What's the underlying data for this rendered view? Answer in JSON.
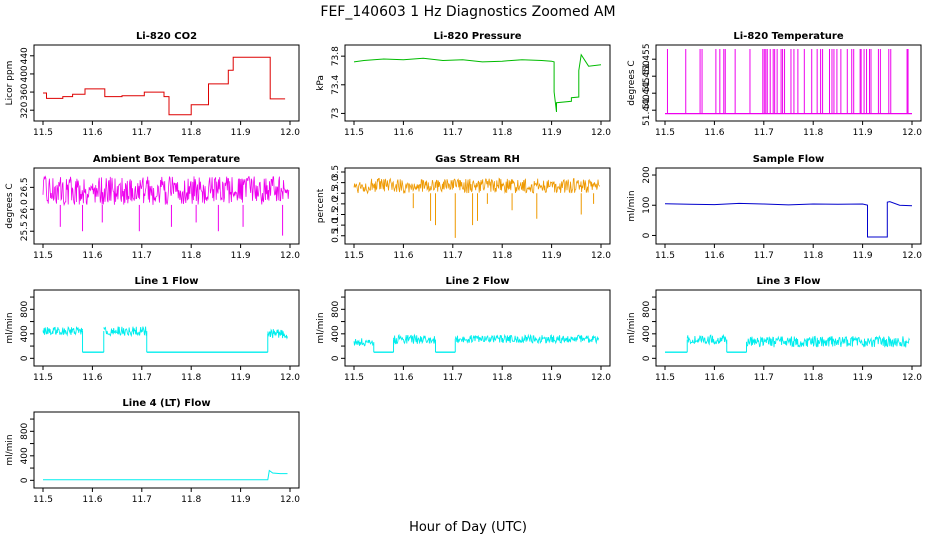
{
  "figure": {
    "title": "FEF_140603  1 Hz Diagnostics Zoomed AM",
    "xlabel": "Hour of Day (UTC)"
  },
  "chart_data": [
    {
      "type": "line",
      "title": "Li-820 CO2",
      "ylabel": "Licor ppm",
      "color": "#dd0000",
      "xlim": [
        11.5,
        12.0
      ],
      "xticks": [
        "11.5",
        "11.6",
        "11.7",
        "11.8",
        "11.9",
        "12.0"
      ],
      "ylim": [
        305,
        455
      ],
      "yticks": [
        320,
        360,
        400,
        440
      ],
      "x": [
        11.5,
        11.507,
        11.507,
        11.54,
        11.54,
        11.56,
        11.56,
        11.585,
        11.585,
        11.625,
        11.625,
        11.66,
        11.66,
        11.705,
        11.705,
        11.745,
        11.745,
        11.755,
        11.755,
        11.8,
        11.8,
        11.835,
        11.835,
        11.875,
        11.875,
        11.885,
        11.885,
        11.96,
        11.96,
        11.99
      ],
      "values": [
        358,
        358,
        346,
        346,
        350,
        350,
        355,
        355,
        367,
        367,
        350,
        350,
        352,
        352,
        360,
        360,
        350,
        350,
        310,
        310,
        332,
        332,
        378,
        378,
        408,
        408,
        437,
        437,
        345,
        345
      ]
    },
    {
      "type": "line",
      "title": "Li-820 Pressure",
      "ylabel": "kPa",
      "color": "#00bb00",
      "xlim": [
        11.5,
        12.0
      ],
      "xticks": [
        "11.5",
        "11.6",
        "11.7",
        "11.8",
        "11.9",
        "12.0"
      ],
      "ylim": [
        72.95,
        73.9
      ],
      "yticks": [
        73.0,
        73.4,
        73.8
      ],
      "x": [
        11.5,
        11.52,
        11.56,
        11.6,
        11.64,
        11.68,
        11.72,
        11.76,
        11.8,
        11.84,
        11.88,
        11.9,
        11.905,
        11.905,
        11.91,
        11.91,
        11.94,
        11.94,
        11.955,
        11.955,
        11.96,
        11.975,
        12.0
      ],
      "values": [
        73.72,
        73.74,
        73.76,
        73.75,
        73.77,
        73.74,
        73.75,
        73.72,
        73.73,
        73.75,
        73.74,
        73.73,
        73.72,
        73.3,
        73.02,
        73.15,
        73.17,
        73.22,
        73.23,
        73.6,
        73.82,
        73.66,
        73.68
      ]
    },
    {
      "type": "line",
      "title": "Li-820 Temperature",
      "ylabel": "degrees C",
      "color": "#ee00ee",
      "xlim": [
        11.5,
        12.0
      ],
      "xticks": [
        "11.5",
        "11.6",
        "11.7",
        "11.8",
        "11.9",
        "12.0"
      ],
      "ylim": [
        51.438,
        51.458
      ],
      "yticks": [
        51.44,
        51.445,
        51.45,
        51.455
      ],
      "yticklabels": [
        "51.440",
        "51.445",
        "51.450",
        "51.455"
      ],
      "base": 51.439,
      "spike_top": 51.458,
      "spike_x": [
        11.505,
        11.542,
        11.571,
        11.575,
        11.603,
        11.611,
        11.619,
        11.622,
        11.642,
        11.672,
        11.698,
        11.701,
        11.704,
        11.707,
        11.713,
        11.719,
        11.722,
        11.727,
        11.735,
        11.738,
        11.742,
        11.755,
        11.761,
        11.769,
        11.782,
        11.797,
        11.808,
        11.815,
        11.819,
        11.833,
        11.838,
        11.842,
        11.848,
        11.856,
        11.869,
        11.878,
        11.882,
        11.895,
        11.897,
        11.903,
        11.908,
        11.914,
        11.917,
        11.932,
        11.936,
        11.953,
        11.957,
        11.99,
        11.992
      ]
    },
    {
      "type": "line",
      "title": "Ambient Box Temperature",
      "ylabel": "degrees C",
      "color": "#ee00ee",
      "xlim": [
        11.5,
        12.0
      ],
      "xticks": [
        "11.5",
        "11.6",
        "11.7",
        "11.8",
        "11.9",
        "12.0"
      ],
      "ylim": [
        25.3,
        26.85
      ],
      "yticks": [
        25.5,
        26.0,
        26.5
      ],
      "yticklabels": [
        "25.5",
        "26.0",
        "26.5"
      ],
      "band_low": 26.1,
      "band_high": 26.75,
      "dips": [
        [
          11.535,
          25.6
        ],
        [
          11.58,
          25.5
        ],
        [
          11.62,
          25.7
        ],
        [
          11.695,
          25.5
        ],
        [
          11.76,
          25.6
        ],
        [
          11.81,
          25.7
        ],
        [
          11.855,
          25.5
        ],
        [
          11.905,
          25.6
        ],
        [
          11.985,
          25.4
        ]
      ]
    },
    {
      "type": "line",
      "title": "Gas Stream RH",
      "ylabel": "percent",
      "color": "#ee9900",
      "xlim": [
        11.5,
        12.0
      ],
      "xticks": [
        "11.5",
        "11.6",
        "11.7",
        "11.8",
        "11.9",
        "12.0"
      ],
      "ylim": [
        0.3,
        3.5
      ],
      "yticks": [
        0.5,
        1.0,
        1.5,
        2.0,
        2.5,
        3.0,
        3.5
      ],
      "yticklabels": [
        "0.5",
        "1.0",
        "1.5",
        "2.0",
        "2.5",
        "3.0",
        "3.5"
      ],
      "band_low": 2.5,
      "band_high": 3.2,
      "dips": [
        [
          11.62,
          1.8
        ],
        [
          11.655,
          1.2
        ],
        [
          11.665,
          1.0
        ],
        [
          11.705,
          0.4
        ],
        [
          11.74,
          1.0
        ],
        [
          11.75,
          1.2
        ],
        [
          11.77,
          2.0
        ],
        [
          11.82,
          1.7
        ],
        [
          11.87,
          1.3
        ],
        [
          11.96,
          1.5
        ],
        [
          11.985,
          2.0
        ]
      ]
    },
    {
      "type": "line",
      "title": "Sample Flow",
      "ylabel": "ml/min",
      "color": "#0000cc",
      "xlim": [
        11.5,
        12.0
      ],
      "xticks": [
        "11.5",
        "11.6",
        "11.7",
        "11.8",
        "11.9",
        "12.0"
      ],
      "ylim": [
        -15,
        210
      ],
      "yticks": [
        0,
        100,
        200
      ],
      "x": [
        11.5,
        11.55,
        11.6,
        11.65,
        11.7,
        11.75,
        11.8,
        11.85,
        11.9,
        11.91,
        11.91,
        11.95,
        11.95,
        11.955,
        11.975,
        12.0
      ],
      "values": [
        105,
        103,
        102,
        106,
        104,
        101,
        104,
        103,
        104,
        100,
        -5,
        -5,
        110,
        112,
        100,
        98
      ]
    },
    {
      "type": "line",
      "title": "Line 1 Flow",
      "ylabel": "ml/min",
      "color": "#00eeee",
      "xlim": [
        11.5,
        12.0
      ],
      "xticks": [
        "11.5",
        "11.6",
        "11.7",
        "11.8",
        "11.9",
        "12.0"
      ],
      "ylim": [
        -60,
        1050
      ],
      "yticks": [
        0,
        200,
        400,
        600,
        800,
        1000
      ],
      "yticklabels": [
        "0",
        "400",
        "800"
      ],
      "segments": [
        [
          11.5,
          11.58,
          380,
          520
        ],
        [
          11.58,
          11.623,
          100,
          100
        ],
        [
          11.623,
          11.71,
          370,
          520
        ],
        [
          11.71,
          11.955,
          100,
          100
        ],
        [
          11.955,
          11.995,
          330,
          480
        ]
      ]
    },
    {
      "type": "line",
      "title": "Line 2 Flow",
      "ylabel": "ml/min",
      "color": "#00eeee",
      "xlim": [
        11.5,
        12.0
      ],
      "xticks": [
        "11.5",
        "11.6",
        "11.7",
        "11.8",
        "11.9",
        "12.0"
      ],
      "ylim": [
        -60,
        1050
      ],
      "yticks": [
        0,
        200,
        400,
        600,
        800,
        1000
      ],
      "yticklabels": [
        "0",
        "400",
        "800"
      ],
      "segments": [
        [
          11.5,
          11.54,
          200,
          330
        ],
        [
          11.54,
          11.58,
          100,
          100
        ],
        [
          11.58,
          11.665,
          230,
          380
        ],
        [
          11.665,
          11.705,
          100,
          100
        ],
        [
          11.705,
          11.995,
          250,
          380
        ]
      ]
    },
    {
      "type": "line",
      "title": "Line 3 Flow",
      "ylabel": "ml/min",
      "color": "#00eeee",
      "xlim": [
        11.5,
        12.0
      ],
      "xticks": [
        "11.5",
        "11.6",
        "11.7",
        "11.8",
        "11.9",
        "12.0"
      ],
      "ylim": [
        -60,
        1050
      ],
      "yticks": [
        0,
        200,
        400,
        600,
        800,
        1000
      ],
      "yticklabels": [
        "0",
        "400",
        "800"
      ],
      "segments": [
        [
          11.5,
          11.545,
          100,
          100
        ],
        [
          11.545,
          11.625,
          230,
          380
        ],
        [
          11.625,
          11.665,
          100,
          100
        ],
        [
          11.665,
          11.995,
          180,
          360
        ]
      ]
    },
    {
      "type": "line",
      "title": "Line 4 (LT) Flow",
      "ylabel": "ml/min",
      "color": "#00eeee",
      "xlim": [
        11.5,
        12.0
      ],
      "xticks": [
        "11.5",
        "11.6",
        "11.7",
        "11.8",
        "11.9",
        "12.0"
      ],
      "ylim": [
        -60,
        1050
      ],
      "yticks": [
        0,
        200,
        400,
        600,
        800,
        1000
      ],
      "yticklabels": [
        "0",
        "400",
        "800"
      ],
      "x": [
        11.5,
        11.6,
        11.7,
        11.8,
        11.9,
        11.955,
        11.958,
        11.965,
        11.98,
        11.995
      ],
      "values": [
        10,
        10,
        10,
        10,
        10,
        10,
        160,
        120,
        110,
        110
      ]
    }
  ]
}
